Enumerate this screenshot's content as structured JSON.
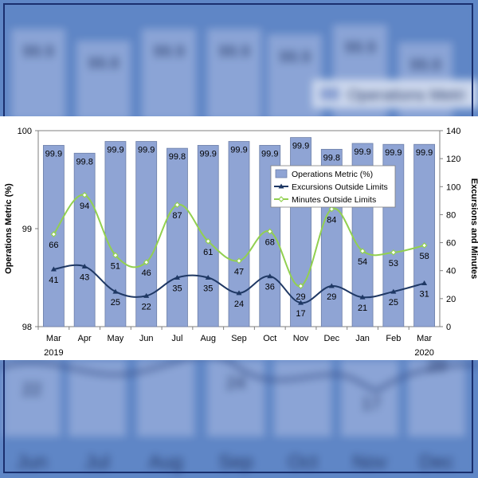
{
  "chart_data": {
    "type": "bar+line",
    "categories": [
      "Mar",
      "Apr",
      "May",
      "Jun",
      "Jul",
      "Aug",
      "Sep",
      "Oct",
      "Nov",
      "Dec",
      "Jan",
      "Feb",
      "Mar"
    ],
    "years": [
      {
        "index": 0,
        "label": "2019"
      },
      {
        "index": 12,
        "label": "2020"
      }
    ],
    "ylabel_left": "Operations Metric (%)",
    "ylabel_right": "Excursions and Minutes",
    "ylim_left": [
      98,
      100
    ],
    "yticks_left": [
      "98",
      "99",
      "100"
    ],
    "ylim_right": [
      0,
      140
    ],
    "yticks_right": [
      "0",
      "20",
      "40",
      "60",
      "80",
      "100",
      "120",
      "140"
    ],
    "legend_position": "upper-right",
    "series": [
      {
        "name": "Operations Metric (%)",
        "type": "bar",
        "axis": "left",
        "color": "#8fa4d4",
        "values": [
          99.85,
          99.77,
          99.89,
          99.89,
          99.82,
          99.85,
          99.89,
          99.85,
          99.93,
          99.81,
          99.87,
          99.86,
          99.86
        ],
        "labels": [
          "99.9",
          "99.8",
          "99.9",
          "99.9",
          "99.8",
          "99.9",
          "99.9",
          "99.9",
          "99.9",
          "99.8",
          "99.9",
          "99.9",
          "99.9"
        ]
      },
      {
        "name": "Excursions Outside Limits",
        "type": "line",
        "axis": "right",
        "color": "#1f3864",
        "values": [
          41,
          43,
          25,
          22,
          35,
          35,
          24,
          36,
          17,
          29,
          21,
          25,
          31
        ],
        "labels": [
          "41",
          "43",
          "25",
          "22",
          "35",
          "35",
          "24",
          "36",
          "17",
          "29",
          "21",
          "25",
          "31"
        ]
      },
      {
        "name": "Minutes Outside Limits",
        "type": "line",
        "axis": "right",
        "color": "#92d050",
        "values": [
          66,
          94,
          51,
          46,
          87,
          61,
          47,
          68,
          29,
          84,
          54,
          53,
          58
        ],
        "labels": [
          "66",
          "94",
          "51",
          "46",
          "87",
          "61",
          "47",
          "68",
          "29",
          "84",
          "54",
          "53",
          "58"
        ]
      }
    ]
  },
  "background": {
    "top_bar_labels": [
      "99.9",
      "99.8",
      "99.9",
      "99.9",
      "99.9",
      "99.9",
      "99.8"
    ],
    "legend_fragment": "Operations Metri",
    "bottom_values": [
      "22",
      "24",
      "17",
      "29"
    ],
    "bottom_months": [
      "Jun",
      "Jul",
      "Aug",
      "Sep",
      "Oct",
      "Nov",
      "Dec"
    ]
  }
}
